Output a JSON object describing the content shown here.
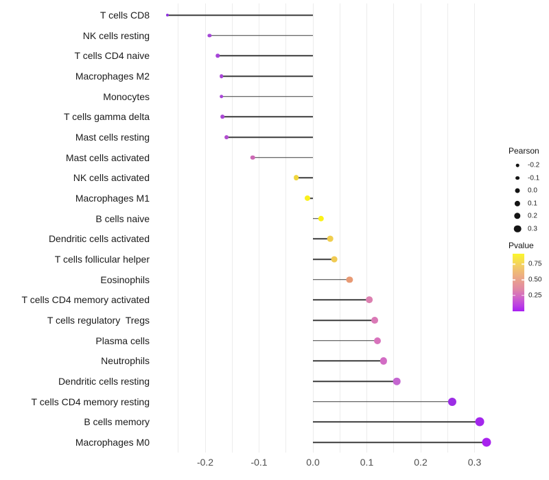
{
  "chart_data": {
    "type": "scatter",
    "variant": "lollipop",
    "title": "",
    "xlabel": "",
    "ylabel": "",
    "categories": [
      "T cells CD8",
      "NK cells resting",
      "T cells CD4 naive",
      "Macrophages M2",
      "Monocytes",
      "T cells gamma delta",
      "Mast cells resting",
      "Mast cells activated",
      "NK cells activated",
      "Macrophages M1",
      "B cells naive",
      "Dendritic cells activated",
      "T cells follicular helper",
      "Eosinophils",
      "T cells CD4 memory activated",
      "T cells regulatory  Tregs",
      "Plasma cells",
      "Neutrophils",
      "Dendritic cells resting",
      "T cells CD4 memory resting",
      "B cells memory",
      "Macrophages M0"
    ],
    "series": [
      {
        "name": "Pearson correlation",
        "values": [
          -0.27,
          -0.192,
          -0.177,
          -0.17,
          -0.17,
          -0.168,
          -0.16,
          -0.112,
          -0.031,
          -0.01,
          0.015,
          0.032,
          0.04,
          0.068,
          0.105,
          0.115,
          0.12,
          0.131,
          0.156,
          0.258,
          0.31,
          0.322
        ]
      }
    ],
    "point_colors": [
      "#8f32df",
      "#a547d7",
      "#a644d8",
      "#a846d6",
      "#a846d6",
      "#aa48d4",
      "#b14ccf",
      "#cc68b4",
      "#f0d63c",
      "#faf01e",
      "#fcf216",
      "#f0ce4e",
      "#f0ca52",
      "#e89a74",
      "#dc80b0",
      "#da79b6",
      "#d873bc",
      "#d26cc4",
      "#c466d0",
      "#9c2de5",
      "#a327ec",
      "#a822ee"
    ],
    "stick_color": "#3a3a3a",
    "x_ticks": [
      "-0.2",
      "-0.1",
      "0.0",
      "0.1",
      "0.2",
      "0.3"
    ],
    "x_tick_values": [
      -0.2,
      -0.1,
      0.0,
      0.1,
      0.2,
      0.3
    ],
    "x_grid_start": -0.25,
    "x_grid_end": 0.3,
    "x_grid_step": 0.05,
    "xlim": [
      -0.299,
      0.351
    ],
    "grid": "vertical only, light gray",
    "legend_position": "right",
    "size_legend": {
      "title": "Pearson",
      "entries": [
        "-0.2",
        "-0.1",
        "0.0",
        "0.1",
        "0.2",
        "0.3"
      ],
      "entry_values": [
        -0.2,
        -0.1,
        0.0,
        0.1,
        0.2,
        0.3
      ],
      "dot_color": "#141414"
    },
    "color_legend": {
      "title": "Pvalue",
      "labels": [
        "0.75",
        "0.50",
        "0.25"
      ],
      "label_values": [
        0.75,
        0.5,
        0.25
      ],
      "gradient_top_color": "#fbf62c",
      "gradient_mid_color": "#e79a93",
      "gradient_bottom_color": "#a81ff2"
    }
  }
}
